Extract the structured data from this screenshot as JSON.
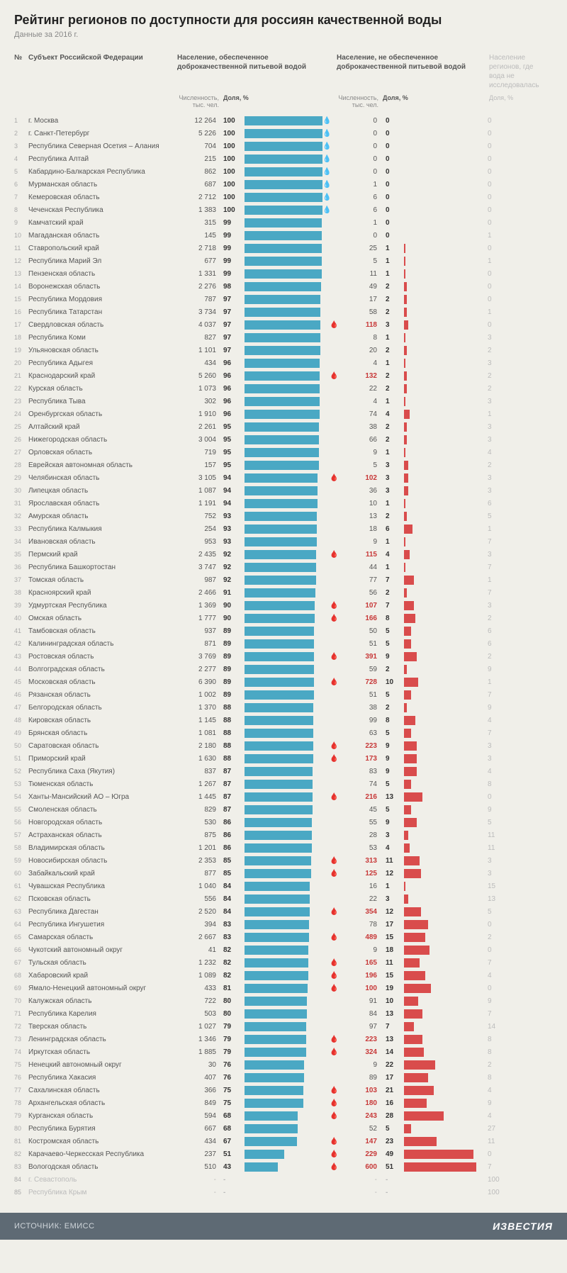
{
  "title": "Рейтинг регионов по доступности для россиян качественной воды",
  "subtitle": "Данные за 2016 г.",
  "headers": {
    "num": "№",
    "name": "Субъект Российской Федерации",
    "good": "Население, обеспеченное доброкачественной питьевой водой",
    "bad": "Население, не обеспеченное доброкачественной питьевой водой",
    "na": "Население регионов, где вода не исследовалась"
  },
  "subheaders": {
    "pop": "Численность, тыс. чел.",
    "pct": "Доля, %",
    "na_pct": "Доля, %"
  },
  "colors": {
    "good_bar": "#4aa8c4",
    "bad_bar": "#d94c4c",
    "background": "#f0efe9",
    "text": "#555",
    "muted": "#bbb",
    "hot": "#c73838",
    "footer_bg": "#5e6a74"
  },
  "bar_max_good": 100,
  "bar_max_bad": 55,
  "hot_threshold": 100,
  "rows": [
    {
      "n": 1,
      "name": "г. Москва",
      "pop1": "12 264",
      "pct1": 100,
      "drop": true,
      "pop2": 0,
      "pct2": 0,
      "na": 0
    },
    {
      "n": 2,
      "name": "г. Санкт-Петербург",
      "pop1": "5 226",
      "pct1": 100,
      "drop": true,
      "pop2": 0,
      "pct2": 0,
      "na": 0
    },
    {
      "n": 3,
      "name": "Республика Северная Осетия – Алания",
      "pop1": "704",
      "pct1": 100,
      "drop": true,
      "pop2": 0,
      "pct2": 0,
      "na": 0
    },
    {
      "n": 4,
      "name": "Республика Алтай",
      "pop1": "215",
      "pct1": 100,
      "drop": true,
      "pop2": 0,
      "pct2": 0,
      "na": 0
    },
    {
      "n": 5,
      "name": "Кабардино-Балкарская Республика",
      "pop1": "862",
      "pct1": 100,
      "drop": true,
      "pop2": 0,
      "pct2": 0,
      "na": 0
    },
    {
      "n": 6,
      "name": "Мурманская область",
      "pop1": "687",
      "pct1": 100,
      "drop": true,
      "pop2": 1,
      "pct2": 0,
      "na": 0
    },
    {
      "n": 7,
      "name": "Кемеровская область",
      "pop1": "2 712",
      "pct1": 100,
      "drop": true,
      "pop2": 6,
      "pct2": 0,
      "na": 0
    },
    {
      "n": 8,
      "name": "Чеченская Республика",
      "pop1": "1 383",
      "pct1": 100,
      "drop": true,
      "pop2": 6,
      "pct2": 0,
      "na": 0
    },
    {
      "n": 9,
      "name": "Камчатский край",
      "pop1": "315",
      "pct1": 99,
      "pop2": 1,
      "pct2": 0,
      "na": 0
    },
    {
      "n": 10,
      "name": "Магаданская область",
      "pop1": "145",
      "pct1": 99,
      "pop2": 0,
      "pct2": 0,
      "na": 1
    },
    {
      "n": 11,
      "name": "Ставропольский край",
      "pop1": "2 718",
      "pct1": 99,
      "pop2": 25,
      "pct2": 1,
      "na": 0
    },
    {
      "n": 12,
      "name": "Республика Марий Эл",
      "pop1": "677",
      "pct1": 99,
      "pop2": 5,
      "pct2": 1,
      "na": 1
    },
    {
      "n": 13,
      "name": "Пензенская область",
      "pop1": "1 331",
      "pct1": 99,
      "pop2": 11,
      "pct2": 1,
      "na": 0
    },
    {
      "n": 14,
      "name": "Воронежская область",
      "pop1": "2 276",
      "pct1": 98,
      "pop2": 49,
      "pct2": 2,
      "na": 0
    },
    {
      "n": 15,
      "name": "Республика Мордовия",
      "pop1": "787",
      "pct1": 97,
      "pop2": 17,
      "pct2": 2,
      "na": 0
    },
    {
      "n": 16,
      "name": "Республика Татарстан",
      "pop1": "3 734",
      "pct1": 97,
      "pop2": 58,
      "pct2": 2,
      "na": 1
    },
    {
      "n": 17,
      "name": "Свердловская область",
      "pop1": "4 037",
      "pct1": 97,
      "pop2": 118,
      "pct2": 3,
      "na": 0
    },
    {
      "n": 18,
      "name": "Республика Коми",
      "pop1": "827",
      "pct1": 97,
      "pop2": 8,
      "pct2": 1,
      "na": 3
    },
    {
      "n": 19,
      "name": "Ульяновская область",
      "pop1": "1 101",
      "pct1": 97,
      "pop2": 20,
      "pct2": 2,
      "na": 2
    },
    {
      "n": 20,
      "name": "Республика Адыгея",
      "pop1": "434",
      "pct1": 96,
      "pop2": 4,
      "pct2": 1,
      "na": 3
    },
    {
      "n": 21,
      "name": "Краснодарский край",
      "pop1": "5 260",
      "pct1": 96,
      "pop2": 132,
      "pct2": 2,
      "na": 2
    },
    {
      "n": 22,
      "name": "Курская область",
      "pop1": "1 073",
      "pct1": 96,
      "pop2": 22,
      "pct2": 2,
      "na": 2
    },
    {
      "n": 23,
      "name": "Республика Тыва",
      "pop1": "302",
      "pct1": 96,
      "pop2": 4,
      "pct2": 1,
      "na": 3
    },
    {
      "n": 24,
      "name": "Оренбургская область",
      "pop1": "1 910",
      "pct1": 96,
      "pop2": 74,
      "pct2": 4,
      "na": 1
    },
    {
      "n": 25,
      "name": "Алтайский край",
      "pop1": "2 261",
      "pct1": 95,
      "pop2": 38,
      "pct2": 2,
      "na": 3
    },
    {
      "n": 26,
      "name": "Нижегородская область",
      "pop1": "3 004",
      "pct1": 95,
      "pop2": 66,
      "pct2": 2,
      "na": 3
    },
    {
      "n": 27,
      "name": "Орловская область",
      "pop1": "719",
      "pct1": 95,
      "pop2": 9,
      "pct2": 1,
      "na": 4
    },
    {
      "n": 28,
      "name": "Еврейская автономная область",
      "pop1": "157",
      "pct1": 95,
      "pop2": 5,
      "pct2": 3,
      "na": 2
    },
    {
      "n": 29,
      "name": "Челябинская область",
      "pop1": "3 105",
      "pct1": 94,
      "pop2": 102,
      "pct2": 3,
      "na": 3
    },
    {
      "n": 30,
      "name": "Липецкая область",
      "pop1": "1 087",
      "pct1": 94,
      "pop2": 36,
      "pct2": 3,
      "na": 3
    },
    {
      "n": 31,
      "name": "Ярославская область",
      "pop1": "1 191",
      "pct1": 94,
      "pop2": 10,
      "pct2": 1,
      "na": 6
    },
    {
      "n": 32,
      "name": "Амурская область",
      "pop1": "752",
      "pct1": 93,
      "pop2": 13,
      "pct2": 2,
      "na": 5
    },
    {
      "n": 33,
      "name": "Республика Калмыкия",
      "pop1": "254",
      "pct1": 93,
      "pop2": 18,
      "pct2": 6,
      "na": 1
    },
    {
      "n": 34,
      "name": "Ивановская область",
      "pop1": "953",
      "pct1": 93,
      "pop2": 9,
      "pct2": 1,
      "na": 7
    },
    {
      "n": 35,
      "name": "Пермский край",
      "pop1": "2 435",
      "pct1": 92,
      "pop2": 115,
      "pct2": 4,
      "na": 3
    },
    {
      "n": 36,
      "name": "Республика Башкортостан",
      "pop1": "3 747",
      "pct1": 92,
      "pop2": 44,
      "pct2": 1,
      "na": 7
    },
    {
      "n": 37,
      "name": "Томская область",
      "pop1": "987",
      "pct1": 92,
      "pop2": 77,
      "pct2": 7,
      "na": 1
    },
    {
      "n": 38,
      "name": "Красноярский край",
      "pop1": "2 466",
      "pct1": 91,
      "pop2": 56,
      "pct2": 2,
      "na": 7
    },
    {
      "n": 39,
      "name": "Удмуртская Республика",
      "pop1": "1 369",
      "pct1": 90,
      "pop2": 107,
      "pct2": 7,
      "na": 3
    },
    {
      "n": 40,
      "name": "Омская область",
      "pop1": "1 777",
      "pct1": 90,
      "pop2": 166,
      "pct2": 8,
      "na": 2
    },
    {
      "n": 41,
      "name": "Тамбовская область",
      "pop1": "937",
      "pct1": 89,
      "pop2": 50,
      "pct2": 5,
      "na": 6
    },
    {
      "n": 42,
      "name": "Калининградская область",
      "pop1": "871",
      "pct1": 89,
      "pop2": 51,
      "pct2": 5,
      "na": 6
    },
    {
      "n": 43,
      "name": "Ростовская область",
      "pop1": "3 769",
      "pct1": 89,
      "pop2": 391,
      "pct2": 9,
      "na": 2
    },
    {
      "n": 44,
      "name": "Волгоградская область",
      "pop1": "2 277",
      "pct1": 89,
      "pop2": 59,
      "pct2": 2,
      "na": 9
    },
    {
      "n": 45,
      "name": "Московская область",
      "pop1": "6 390",
      "pct1": 89,
      "pop2": 728,
      "pct2": 10,
      "na": 1
    },
    {
      "n": 46,
      "name": "Рязанская область",
      "pop1": "1 002",
      "pct1": 89,
      "pop2": 51,
      "pct2": 5,
      "na": 7
    },
    {
      "n": 47,
      "name": "Белгородская область",
      "pop1": "1 370",
      "pct1": 88,
      "pop2": 38,
      "pct2": 2,
      "na": 9
    },
    {
      "n": 48,
      "name": "Кировская область",
      "pop1": "1 145",
      "pct1": 88,
      "pop2": 99,
      "pct2": 8,
      "na": 4
    },
    {
      "n": 49,
      "name": "Брянская область",
      "pop1": "1 081",
      "pct1": 88,
      "pop2": 63,
      "pct2": 5,
      "na": 7
    },
    {
      "n": 50,
      "name": "Саратовская область",
      "pop1": "2 180",
      "pct1": 88,
      "pop2": 223,
      "pct2": 9,
      "na": 3
    },
    {
      "n": 51,
      "name": "Приморский край",
      "pop1": "1 630",
      "pct1": 88,
      "pop2": 173,
      "pct2": 9,
      "na": 3
    },
    {
      "n": 52,
      "name": "Республика Саха (Якутия)",
      "pop1": "837",
      "pct1": 87,
      "pop2": 83,
      "pct2": 9,
      "na": 4
    },
    {
      "n": 53,
      "name": "Тюменская область",
      "pop1": "1 267",
      "pct1": 87,
      "pop2": 74,
      "pct2": 5,
      "na": 8
    },
    {
      "n": 54,
      "name": "Ханты-Мансийский АО – Югра",
      "pop1": "1 445",
      "pct1": 87,
      "pop2": 216,
      "pct2": 13,
      "na": 0
    },
    {
      "n": 55,
      "name": "Смоленская область",
      "pop1": "829",
      "pct1": 87,
      "pop2": 45,
      "pct2": 5,
      "na": 9
    },
    {
      "n": 56,
      "name": "Новгородская область",
      "pop1": "530",
      "pct1": 86,
      "pop2": 55,
      "pct2": 9,
      "na": 5
    },
    {
      "n": 57,
      "name": "Астраханская область",
      "pop1": "875",
      "pct1": 86,
      "pop2": 28,
      "pct2": 3,
      "na": 11
    },
    {
      "n": 58,
      "name": "Владимирская область",
      "pop1": "1 201",
      "pct1": 86,
      "pop2": 53,
      "pct2": 4,
      "na": 11
    },
    {
      "n": 59,
      "name": "Новосибирская область",
      "pop1": "2 353",
      "pct1": 85,
      "pop2": 313,
      "pct2": 11,
      "na": 3
    },
    {
      "n": 60,
      "name": "Забайкальский край",
      "pop1": "877",
      "pct1": 85,
      "pop2": 125,
      "pct2": 12,
      "na": 3
    },
    {
      "n": 61,
      "name": "Чувашская Республика",
      "pop1": "1 040",
      "pct1": 84,
      "pop2": 16,
      "pct2": 1,
      "na": 15
    },
    {
      "n": 62,
      "name": "Псковская область",
      "pop1": "556",
      "pct1": 84,
      "pop2": 22,
      "pct2": 3,
      "na": 13
    },
    {
      "n": 63,
      "name": "Республика Дагестан",
      "pop1": "2 520",
      "pct1": 84,
      "pop2": 354,
      "pct2": 12,
      "na": 5
    },
    {
      "n": 64,
      "name": "Республика Ингушетия",
      "pop1": "394",
      "pct1": 83,
      "pop2": 78,
      "pct2": 17,
      "na": 0
    },
    {
      "n": 65,
      "name": "Самарская область",
      "pop1": "2 667",
      "pct1": 83,
      "pop2": 489,
      "pct2": 15,
      "na": 2
    },
    {
      "n": 66,
      "name": "Чукотский автономный округ",
      "pop1": "41",
      "pct1": 82,
      "pop2": 9,
      "pct2": 18,
      "na": 0
    },
    {
      "n": 67,
      "name": "Тульская область",
      "pop1": "1 232",
      "pct1": 82,
      "pop2": 165,
      "pct2": 11,
      "na": 7
    },
    {
      "n": 68,
      "name": "Хабаровский край",
      "pop1": "1 089",
      "pct1": 82,
      "pop2": 196,
      "pct2": 15,
      "na": 4
    },
    {
      "n": 69,
      "name": "Ямало-Ненецкий автономный округ",
      "pop1": "433",
      "pct1": 81,
      "pop2": 100,
      "pct2": 19,
      "na": 0
    },
    {
      "n": 70,
      "name": "Калужская область",
      "pop1": "722",
      "pct1": 80,
      "pop2": 91,
      "pct2": 10,
      "na": 9
    },
    {
      "n": 71,
      "name": "Республика Карелия",
      "pop1": "503",
      "pct1": 80,
      "pop2": 84,
      "pct2": 13,
      "na": 7
    },
    {
      "n": 72,
      "name": "Тверская область",
      "pop1": "1 027",
      "pct1": 79,
      "pop2": 97,
      "pct2": 7,
      "na": 14
    },
    {
      "n": 73,
      "name": "Ленинградская область",
      "pop1": "1 346",
      "pct1": 79,
      "pop2": 223,
      "pct2": 13,
      "na": 8
    },
    {
      "n": 74,
      "name": "Иркутская область",
      "pop1": "1 885",
      "pct1": 79,
      "pop2": 324,
      "pct2": 14,
      "na": 8
    },
    {
      "n": 75,
      "name": "Ненецкий автономный округ",
      "pop1": "30",
      "pct1": 76,
      "pop2": 9,
      "pct2": 22,
      "na": 2
    },
    {
      "n": 76,
      "name": "Республика Хакасия",
      "pop1": "407",
      "pct1": 76,
      "pop2": 89,
      "pct2": 17,
      "na": 8
    },
    {
      "n": 77,
      "name": "Сахалинская область",
      "pop1": "366",
      "pct1": 75,
      "pop2": 103,
      "pct2": 21,
      "na": 4
    },
    {
      "n": 78,
      "name": "Архангельская область",
      "pop1": "849",
      "pct1": 75,
      "pop2": 180,
      "pct2": 16,
      "na": 9
    },
    {
      "n": 79,
      "name": "Курганская область",
      "pop1": "594",
      "pct1": 68,
      "pop2": 243,
      "pct2": 28,
      "na": 4
    },
    {
      "n": 80,
      "name": "Республика Бурятия",
      "pop1": "667",
      "pct1": 68,
      "pop2": 52,
      "pct2": 5,
      "na": 27
    },
    {
      "n": 81,
      "name": "Костромская область",
      "pop1": "434",
      "pct1": 67,
      "pop2": 147,
      "pct2": 23,
      "na": 11
    },
    {
      "n": 82,
      "name": "Карачаево-Черкесская Республика",
      "pop1": "237",
      "pct1": 51,
      "pop2": 229,
      "pct2": 49,
      "na": 0
    },
    {
      "n": 83,
      "name": "Вологодская область",
      "pop1": "510",
      "pct1": 43,
      "pop2": 600,
      "pct2": 51,
      "na": 7
    },
    {
      "n": 84,
      "name": "г. Севастополь",
      "pop1": "-",
      "pct1": "-",
      "pop2": "-",
      "pct2": "-",
      "na": 100,
      "dim": true
    },
    {
      "n": 85,
      "name": "Республика Крым",
      "pop1": "-",
      "pct1": "-",
      "pop2": "-",
      "pct2": "-",
      "na": 100,
      "dim": true
    }
  ],
  "footer": {
    "source": "ИСТОЧНИК: ЕМИСС",
    "logo": "ИЗВЕСТИЯ"
  }
}
